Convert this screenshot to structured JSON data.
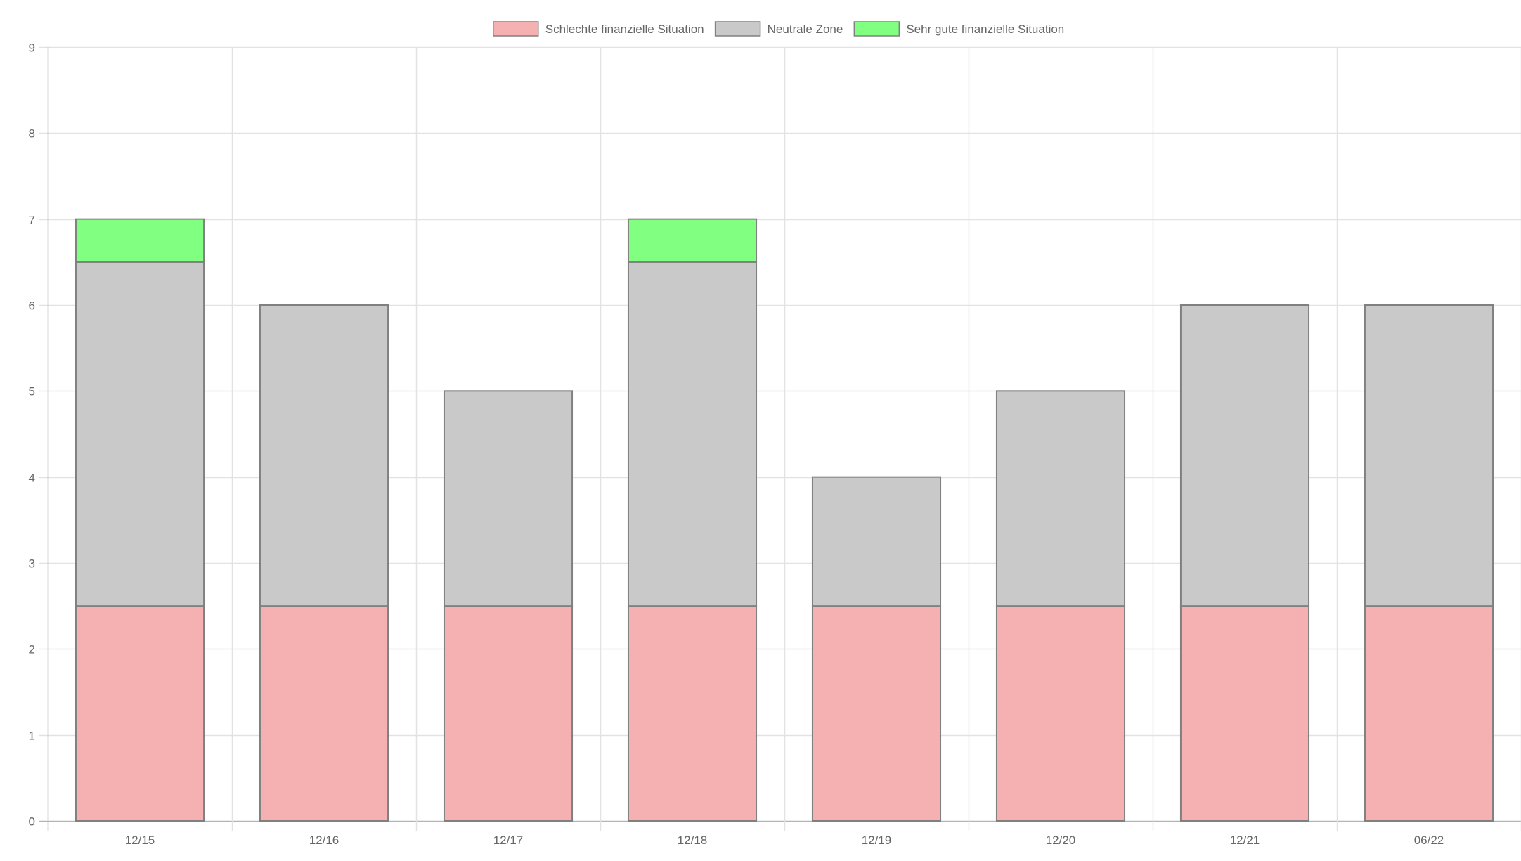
{
  "chart_data": {
    "type": "bar",
    "stacked": true,
    "categories": [
      "12/15",
      "12/16",
      "12/17",
      "12/18",
      "12/19",
      "12/20",
      "12/21",
      "06/22"
    ],
    "series": [
      {
        "name": "Schlechte finanzielle Situation",
        "color": "#f5b1b1",
        "values": [
          2.5,
          2.5,
          2.5,
          2.5,
          2.5,
          2.5,
          2.5,
          2.5
        ]
      },
      {
        "name": "Neutrale Zone",
        "color": "#c9c9c9",
        "values": [
          4,
          3.5,
          2.5,
          4,
          1.5,
          2.5,
          3.5,
          3.5
        ]
      },
      {
        "name": "Sehr gute finanzielle Situation",
        "color": "#80ff80",
        "values": [
          0.5,
          0,
          0,
          0.5,
          0,
          0,
          0,
          0
        ]
      }
    ],
    "ylim": [
      0,
      9
    ],
    "yticks": [
      0,
      1,
      2,
      3,
      4,
      5,
      6,
      7,
      8,
      9
    ],
    "grid": true,
    "legend": "top-center",
    "bar_border_color": "#808080",
    "title": "",
    "xlabel": "",
    "ylabel": ""
  }
}
